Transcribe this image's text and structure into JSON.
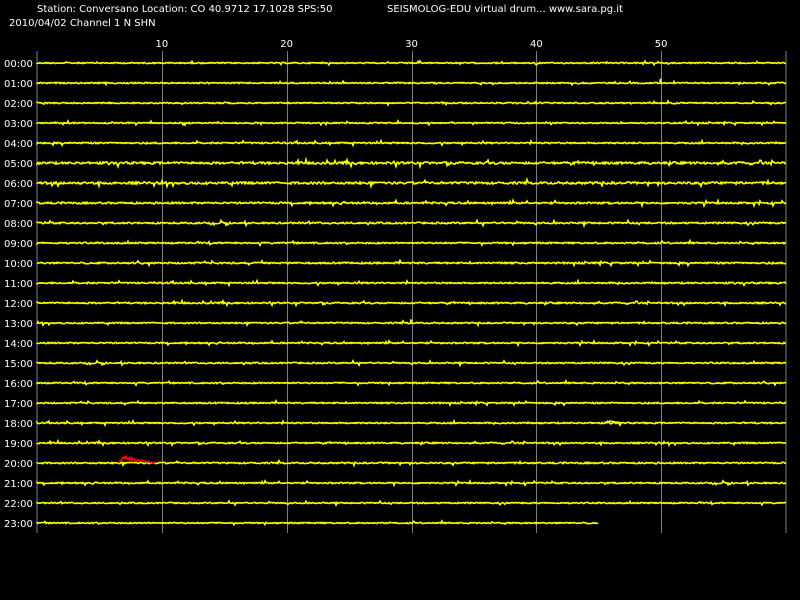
{
  "header": {
    "station_line": "Station: Conversano Location: CO 40.9712 17.1028 SPS:50",
    "date_line": "2010/04/02  Channel 1 N SHN",
    "app_line": "SEISMOLOG-EDU virtual drum... www.sara.pg.it"
  },
  "colors": {
    "background": "#000000",
    "trace": "#ffff00",
    "event": "#ff0000",
    "grid": "#808080",
    "text": "#ffffff"
  },
  "chart_data": {
    "type": "line",
    "title": "",
    "xlabel": "",
    "ylabel": "",
    "xlim": [
      0,
      60
    ],
    "x_ticks": [
      10,
      20,
      30,
      40,
      50
    ],
    "grid": true,
    "rows": [
      "00:00",
      "01:00",
      "02:00",
      "03:00",
      "04:00",
      "05:00",
      "06:00",
      "07:00",
      "08:00",
      "09:00",
      "10:00",
      "11:00",
      "12:00",
      "13:00",
      "14:00",
      "15:00",
      "16:00",
      "17:00",
      "18:00",
      "19:00",
      "20:00",
      "21:00",
      "22:00",
      "23:00"
    ],
    "row_noise": [
      1.0,
      1.0,
      1.0,
      1.0,
      1.2,
      1.8,
      1.8,
      1.4,
      1.3,
      1.2,
      1.3,
      1.2,
      1.2,
      1.1,
      1.1,
      1.1,
      1.1,
      1.1,
      1.1,
      1.1,
      1.2,
      1.1,
      1.0,
      1.0
    ],
    "last_row_end_minute": 45,
    "events": [
      {
        "row": "01:00",
        "start": 49.9,
        "end": 50.1,
        "amplitude": 5,
        "color": "#ffff00"
      },
      {
        "row": "13:00",
        "start": 29.9,
        "end": 30.1,
        "amplitude": 6,
        "color": "#ffff00"
      },
      {
        "row": "18:00",
        "start": 45.5,
        "end": 47.0,
        "amplitude": 2.5,
        "color": "#ffff00"
      },
      {
        "row": "20:00",
        "start": 6.5,
        "end": 9.5,
        "amplitude": 7,
        "color": "#ff0000"
      }
    ]
  }
}
